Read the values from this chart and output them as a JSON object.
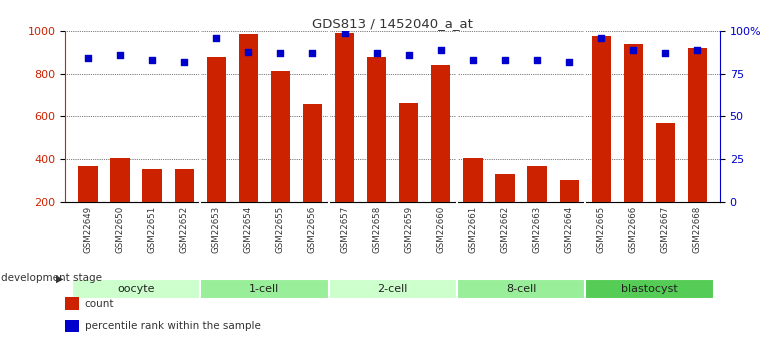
{
  "title": "GDS813 / 1452040_a_at",
  "samples": [
    "GSM22649",
    "GSM22650",
    "GSM22651",
    "GSM22652",
    "GSM22653",
    "GSM22654",
    "GSM22655",
    "GSM22656",
    "GSM22657",
    "GSM22658",
    "GSM22659",
    "GSM22660",
    "GSM22661",
    "GSM22662",
    "GSM22663",
    "GSM22664",
    "GSM22665",
    "GSM22666",
    "GSM22667",
    "GSM22668"
  ],
  "counts": [
    370,
    405,
    355,
    355,
    880,
    985,
    815,
    660,
    990,
    880,
    665,
    840,
    405,
    330,
    370,
    300,
    975,
    940,
    570,
    920
  ],
  "percentiles": [
    84,
    86,
    83,
    82,
    96,
    88,
    87,
    87,
    99,
    87,
    86,
    89,
    83,
    83,
    83,
    82,
    96,
    89,
    87,
    89
  ],
  "groups": [
    {
      "name": "oocyte",
      "start": 0,
      "end": 3,
      "color": "#ccffcc"
    },
    {
      "name": "1-cell",
      "start": 4,
      "end": 7,
      "color": "#99ee99"
    },
    {
      "name": "2-cell",
      "start": 8,
      "end": 11,
      "color": "#ccffcc"
    },
    {
      "name": "8-cell",
      "start": 12,
      "end": 15,
      "color": "#99ee99"
    },
    {
      "name": "blastocyst",
      "start": 16,
      "end": 19,
      "color": "#55cc55"
    }
  ],
  "bar_color": "#cc2200",
  "dot_color": "#0000cc",
  "ylim_left": [
    200,
    1000
  ],
  "ylim_right": [
    0,
    100
  ],
  "yticks_left": [
    200,
    400,
    600,
    800,
    1000
  ],
  "yticks_right": [
    0,
    25,
    50,
    75,
    100
  ],
  "grid_values": [
    400,
    600,
    800,
    1000
  ],
  "ylabel_left_color": "#cc2200",
  "ylabel_right_color": "#0000cc",
  "background_color": "#ffffff",
  "legend_items": [
    {
      "label": "count",
      "color": "#cc2200"
    },
    {
      "label": "percentile rank within the sample",
      "color": "#0000cc"
    }
  ],
  "dev_stage_label": "development stage"
}
